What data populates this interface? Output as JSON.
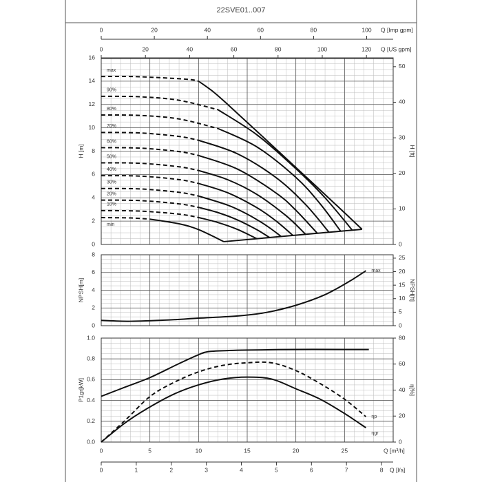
{
  "title": "22SVE01..007",
  "chart_data": [
    {
      "type": "line",
      "y_label": "H [m]",
      "y2_label": "H [ft]",
      "xlim": [
        0,
        30
      ],
      "xticks": [
        0,
        5,
        10,
        15,
        20,
        25
      ],
      "ylim": [
        0,
        16
      ],
      "yticks": [
        0,
        2,
        4,
        6,
        8,
        10,
        12,
        14,
        16
      ],
      "y2lim": [
        0,
        52.49
      ],
      "y2ticks": [
        0,
        10,
        20,
        30,
        40,
        50
      ],
      "grid": true,
      "series_label_position": "start",
      "x_top_axes": [
        {
          "label": "Q [Imp gpm]",
          "lim": [
            0,
            109.98
          ],
          "ticks": [
            0,
            20,
            40,
            60,
            80,
            100
          ]
        },
        {
          "label": "Q [US gpm]",
          "lim": [
            0,
            132.09
          ],
          "ticks": [
            0,
            20,
            40,
            60,
            80,
            100,
            120
          ]
        }
      ],
      "series": [
        {
          "name": "max",
          "dashed": true,
          "color": "#111",
          "x": [
            0,
            3,
            6,
            9,
            10
          ],
          "values": [
            14.4,
            14.4,
            14.3,
            14.15,
            14.0
          ]
        },
        {
          "dashed": false,
          "color": "#111",
          "x": [
            10,
            11.5,
            13,
            16,
            20,
            24,
            26.8
          ],
          "values": [
            14.0,
            13.1,
            12.0,
            9.7,
            6.6,
            3.5,
            1.3
          ]
        },
        {
          "name": "90%",
          "dashed": true,
          "color": "#111",
          "x": [
            0,
            4,
            8,
            12
          ],
          "values": [
            12.7,
            12.66,
            12.36,
            11.55
          ]
        },
        {
          "dashed": false,
          "color": "#111",
          "x": [
            12,
            16,
            20,
            23,
            25.8
          ],
          "values": [
            11.55,
            9.4,
            6.5,
            4.0,
            1.22
          ]
        },
        {
          "name": "80%",
          "dashed": true,
          "color": "#111",
          "x": [
            0,
            4,
            8,
            12
          ],
          "values": [
            11.1,
            11.06,
            10.76,
            9.94
          ]
        },
        {
          "dashed": false,
          "color": "#111",
          "x": [
            12,
            16,
            20,
            22.5,
            24.6
          ],
          "values": [
            9.94,
            8.36,
            5.75,
            3.48,
            1.14
          ]
        },
        {
          "name": "70%",
          "dashed": true,
          "color": "#111",
          "x": [
            0,
            4,
            8,
            10
          ],
          "values": [
            9.6,
            9.56,
            9.26,
            8.93
          ]
        },
        {
          "dashed": false,
          "color": "#111",
          "x": [
            10,
            14,
            18,
            21,
            23.4
          ],
          "values": [
            8.93,
            7.77,
            5.71,
            3.42,
            1.05
          ]
        },
        {
          "name": "60%",
          "dashed": true,
          "color": "#111",
          "x": [
            0,
            4,
            8,
            10
          ],
          "values": [
            8.3,
            8.26,
            7.96,
            7.63
          ]
        },
        {
          "dashed": false,
          "color": "#111",
          "x": [
            10,
            14,
            18,
            20,
            22.2
          ],
          "values": [
            7.63,
            6.46,
            4.39,
            2.93,
            0.96
          ]
        },
        {
          "name": "50%",
          "dashed": true,
          "color": "#111",
          "x": [
            0,
            4,
            8,
            10
          ],
          "values": [
            7.0,
            6.96,
            6.66,
            6.34
          ]
        },
        {
          "dashed": false,
          "color": "#111",
          "x": [
            10,
            13,
            16,
            19,
            21
          ],
          "values": [
            6.34,
            5.55,
            4.29,
            2.46,
            0.87
          ]
        },
        {
          "name": "40%",
          "dashed": true,
          "color": "#111",
          "x": [
            0,
            4,
            8,
            10
          ],
          "values": [
            5.9,
            5.86,
            5.56,
            5.23
          ]
        },
        {
          "dashed": false,
          "color": "#111",
          "x": [
            10,
            13,
            16,
            18,
            19.7
          ],
          "values": [
            5.23,
            4.43,
            3.15,
            1.99,
            0.77
          ]
        },
        {
          "name": "30%",
          "dashed": true,
          "color": "#111",
          "x": [
            0,
            4,
            8,
            10
          ],
          "values": [
            4.8,
            4.76,
            4.47,
            4.15
          ]
        },
        {
          "dashed": false,
          "color": "#111",
          "x": [
            10,
            13,
            15,
            17,
            18.5
          ],
          "values": [
            4.15,
            3.37,
            2.6,
            1.6,
            0.68
          ]
        },
        {
          "name": "20%",
          "dashed": true,
          "color": "#111",
          "x": [
            0,
            4,
            8,
            10
          ],
          "values": [
            3.8,
            3.76,
            3.48,
            3.18
          ]
        },
        {
          "dashed": false,
          "color": "#111",
          "x": [
            10,
            12,
            14,
            16,
            17.3
          ],
          "values": [
            3.18,
            2.73,
            2.1,
            1.26,
            0.59
          ]
        },
        {
          "name": "10%",
          "dashed": true,
          "color": "#111",
          "x": [
            0,
            4,
            8,
            10
          ],
          "values": [
            2.9,
            2.86,
            2.6,
            2.31
          ]
        },
        {
          "dashed": false,
          "color": "#111",
          "x": [
            10,
            12,
            14,
            16
          ],
          "values": [
            2.31,
            1.88,
            1.29,
            0.49
          ]
        },
        {
          "name": "min",
          "label_side": "below",
          "dashed": true,
          "color": "#111",
          "x": [
            0,
            3,
            5
          ],
          "values": [
            2.3,
            2.27,
            2.17
          ]
        },
        {
          "dashed": false,
          "color": "#111",
          "x": [
            5,
            8,
            10,
            12.6
          ],
          "values": [
            2.17,
            1.77,
            1.27,
            0.24
          ]
        },
        {
          "dashed": false,
          "color": "#111",
          "x": [
            12.6,
            26.8
          ],
          "values": [
            0.24,
            1.3
          ]
        }
      ]
    },
    {
      "type": "line",
      "y_label": "NPSH[m]",
      "y2_label": "NPSH[ft]",
      "xlim": [
        0,
        30
      ],
      "xticks": [
        0,
        5,
        10,
        15,
        20,
        25
      ],
      "ylim": [
        0,
        8
      ],
      "yticks": [
        0,
        2,
        4,
        6,
        8
      ],
      "y2lim": [
        0,
        26.25
      ],
      "y2ticks": [
        0,
        5,
        10,
        15,
        20,
        25
      ],
      "grid": true,
      "series_label_position": "end",
      "series": [
        {
          "name": "max",
          "dashed": false,
          "color": "#111",
          "x": [
            0,
            3,
            7,
            10,
            14,
            17,
            20,
            23,
            25.5,
            27.2
          ],
          "values": [
            0.6,
            0.5,
            0.65,
            0.85,
            1.1,
            1.5,
            2.3,
            3.5,
            5,
            6.2
          ]
        }
      ]
    },
    {
      "type": "line",
      "y_label": "P1gr[kW]",
      "y2_label": "η[%]",
      "xlim": [
        0,
        30
      ],
      "xticks": [
        0,
        5,
        10,
        15,
        20,
        25
      ],
      "x_label": "Q [m³/h]",
      "ylim": [
        0,
        1
      ],
      "yticks": [
        {
          "value": 0,
          "label": "0.0"
        },
        0.2,
        0.4,
        0.6,
        0.8,
        {
          "value": 1,
          "label": "1.0"
        }
      ],
      "y2lim": [
        0,
        80
      ],
      "y2ticks": [
        0,
        20,
        40,
        60,
        80
      ],
      "grid": true,
      "series_label_position": "end",
      "x_bottom_axes": [
        {
          "label": "Q [l/s]",
          "lim": [
            0,
            8.333
          ],
          "ticks": [
            0,
            1,
            2,
            3,
            4,
            5,
            6,
            7,
            8
          ]
        }
      ],
      "series": [
        {
          "dashed": false,
          "color": "#111",
          "x": [
            0,
            2.5,
            5,
            8,
            10,
            11,
            13,
            15,
            20,
            25,
            27.5
          ],
          "values": [
            0.44,
            0.53,
            0.62,
            0.755,
            0.84,
            0.87,
            0.88,
            0.885,
            0.89,
            0.89,
            0.89
          ]
        },
        {
          "name": "ηp",
          "axis": "y2",
          "dashed": true,
          "color": "#111",
          "x": [
            0,
            2.5,
            5,
            7.5,
            10,
            12.5,
            15,
            17.5,
            20,
            22.5,
            25,
            27.2
          ],
          "values": [
            0,
            17,
            35,
            46,
            54,
            59,
            61,
            61,
            55,
            45,
            33,
            19.5
          ]
        },
        {
          "name": "ηgr",
          "axis": "y2",
          "label_side": "below",
          "dashed": false,
          "color": "#111",
          "x": [
            0,
            2.5,
            5,
            7.5,
            10,
            12.5,
            15,
            17.5,
            20,
            22.5,
            25,
            27.2
          ],
          "values": [
            0,
            15,
            27,
            37,
            44,
            48.5,
            50,
            48.5,
            41,
            33,
            22,
            11
          ]
        }
      ]
    }
  ]
}
